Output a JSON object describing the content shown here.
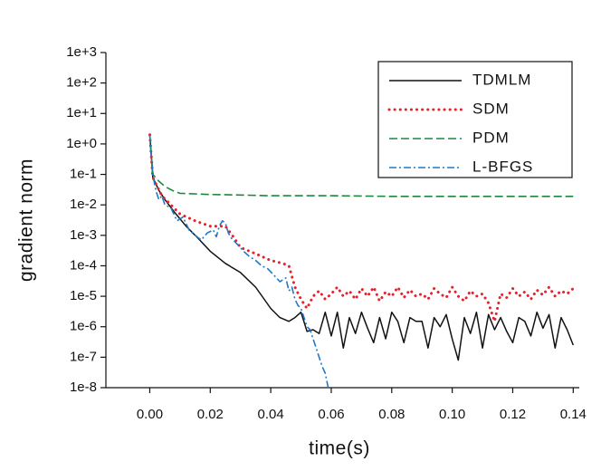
{
  "chart_data": {
    "type": "line",
    "x_label": "time(s)",
    "y_label": "gradient norm",
    "log_y": true,
    "legend_position": "upper right",
    "xlim": [
      -0.0145,
      0.142
    ],
    "ylim": [
      1e-08,
      1000
    ],
    "xticks": [
      {
        "value": 0,
        "label": "0.00"
      },
      0.02,
      0.04,
      0.06,
      0.08,
      {
        "value": 0.1,
        "label": "0.10"
      },
      0.12,
      0.14
    ],
    "yticks": [
      {
        "value": 1e-08,
        "label": "1e-8"
      },
      {
        "value": 1e-07,
        "label": "1e-7"
      },
      {
        "value": 1e-06,
        "label": "1e-6"
      },
      {
        "value": 1e-05,
        "label": "1e-5"
      },
      {
        "value": 0.0001,
        "label": "1e-4"
      },
      {
        "value": 0.001,
        "label": "1e-3"
      },
      {
        "value": 0.01,
        "label": "1e-2"
      },
      {
        "value": 0.1,
        "label": "1e-1"
      },
      {
        "value": 1,
        "label": "1e+0"
      },
      {
        "value": 10,
        "label": "1e+1"
      },
      {
        "value": 100,
        "label": "1e+2"
      },
      {
        "value": 1000,
        "label": "1e+3"
      }
    ],
    "series": [
      {
        "name": "TDMLM",
        "color": "#111111",
        "style": "solid",
        "x": [
          0,
          0.001,
          0.003,
          0.005,
          0.008,
          0.012,
          0.016,
          0.02,
          0.025,
          0.03,
          0.035,
          0.04,
          0.043,
          0.046,
          0.048,
          0.05,
          0.052,
          0.054,
          0.056,
          0.058,
          0.06,
          0.062,
          0.064,
          0.066,
          0.068,
          0.07,
          0.072,
          0.074,
          0.076,
          0.078,
          0.08,
          0.082,
          0.084,
          0.086,
          0.088,
          0.09,
          0.092,
          0.094,
          0.096,
          0.098,
          0.1,
          0.102,
          0.104,
          0.106,
          0.108,
          0.11,
          0.112,
          0.114,
          0.116,
          0.118,
          0.12,
          0.122,
          0.124,
          0.126,
          0.128,
          0.13,
          0.132,
          0.134,
          0.136,
          0.138,
          0.14
        ],
        "values": [
          2,
          0.08,
          0.03,
          0.015,
          0.006,
          0.002,
          0.0008,
          0.0003,
          0.00012,
          6e-05,
          2e-05,
          4e-06,
          2e-06,
          1.5e-06,
          2e-06,
          3e-06,
          7e-07,
          8e-07,
          6e-07,
          3e-06,
          5e-07,
          3e-06,
          2e-07,
          2e-06,
          6e-07,
          3e-06,
          9e-07,
          3e-07,
          2e-06,
          4e-07,
          3e-06,
          1.5e-06,
          3e-07,
          2e-06,
          1.5e-06,
          1.5e-06,
          2e-07,
          2e-06,
          1e-06,
          2.5e-06,
          4e-07,
          8e-08,
          2e-06,
          6e-07,
          3e-06,
          2e-07,
          2.5e-06,
          8e-07,
          2e-06,
          7e-07,
          3e-07,
          2e-06,
          1.5e-06,
          5e-07,
          3e-06,
          9e-07,
          2.5e-06,
          2e-07,
          2e-06,
          8e-07,
          2.5e-07
        ]
      },
      {
        "name": "SDM",
        "color": "#e8202a",
        "style": "dotted",
        "x": [
          0,
          0.001,
          0.004,
          0.007,
          0.01,
          0.015,
          0.02,
          0.025,
          0.028,
          0.03,
          0.035,
          0.04,
          0.044,
          0.046,
          0.048,
          0.05,
          0.052,
          0.054,
          0.056,
          0.058,
          0.06,
          0.062,
          0.064,
          0.066,
          0.068,
          0.07,
          0.072,
          0.074,
          0.076,
          0.078,
          0.08,
          0.082,
          0.084,
          0.086,
          0.088,
          0.09,
          0.092,
          0.094,
          0.096,
          0.098,
          0.1,
          0.102,
          0.104,
          0.106,
          0.108,
          0.11,
          0.112,
          0.114,
          0.116,
          0.118,
          0.12,
          0.122,
          0.124,
          0.126,
          0.128,
          0.13,
          0.132,
          0.134,
          0.136,
          0.138,
          0.14
        ],
        "values": [
          2,
          0.08,
          0.02,
          0.01,
          0.005,
          0.003,
          0.002,
          0.002,
          0.0008,
          0.0004,
          0.00025,
          0.00015,
          0.00012,
          0.0001,
          2e-05,
          8e-06,
          4e-06,
          1e-05,
          1.5e-05,
          8e-06,
          1.2e-05,
          2e-05,
          1e-05,
          1.5e-05,
          8e-06,
          1.8e-05,
          1e-05,
          2e-05,
          7e-06,
          1.4e-05,
          1e-05,
          2e-05,
          9e-06,
          1.6e-05,
          1e-05,
          1.2e-05,
          8e-06,
          1.8e-05,
          1.2e-05,
          9e-06,
          2e-05,
          1e-05,
          7e-06,
          1.5e-05,
          1e-05,
          1.2e-05,
          6e-06,
          1.5e-06,
          1.2e-05,
          9e-06,
          1.8e-05,
          1e-05,
          1.4e-05,
          8e-06,
          1.6e-05,
          1.1e-05,
          2e-05,
          1e-05,
          1.5e-05,
          1.2e-05,
          1.8e-05
        ]
      },
      {
        "name": "PDM",
        "color": "#1a8a3a",
        "style": "dashed",
        "x": [
          0,
          0.001,
          0.003,
          0.005,
          0.008,
          0.01,
          0.02,
          0.03,
          0.04,
          0.05,
          0.06,
          0.08,
          0.1,
          0.12,
          0.14
        ],
        "values": [
          2,
          0.1,
          0.06,
          0.04,
          0.028,
          0.024,
          0.022,
          0.021,
          0.02,
          0.02,
          0.02,
          0.019,
          0.019,
          0.019,
          0.019
        ]
      },
      {
        "name": "L-BFGS",
        "color": "#1f78c8",
        "style": "dashdot",
        "x": [
          0,
          0.001,
          0.002,
          0.003,
          0.004,
          0.005,
          0.007,
          0.009,
          0.011,
          0.013,
          0.015,
          0.017,
          0.019,
          0.021,
          0.022,
          0.023,
          0.024,
          0.025,
          0.026,
          0.027,
          0.029,
          0.031,
          0.033,
          0.035,
          0.037,
          0.039,
          0.041,
          0.043,
          0.045,
          0.046,
          0.047,
          0.048,
          0.049,
          0.05,
          0.051,
          0.052,
          0.053,
          0.054,
          0.055,
          0.056,
          0.057,
          0.058,
          0.059
        ],
        "values": [
          2,
          0.1,
          0.03,
          0.015,
          0.02,
          0.01,
          0.008,
          0.003,
          0.004,
          0.0015,
          0.001,
          0.0007,
          0.0012,
          0.0015,
          0.0009,
          0.002,
          0.003,
          0.0025,
          0.0012,
          0.0008,
          0.0005,
          0.0003,
          0.0002,
          0.00015,
          0.0001,
          8e-05,
          5e-05,
          3e-05,
          4e-05,
          1.5e-05,
          2e-05,
          8e-06,
          5e-06,
          4e-06,
          2e-06,
          1e-06,
          8e-07,
          4e-07,
          2e-07,
          1e-07,
          5e-08,
          3e-08,
          1e-08
        ]
      }
    ]
  }
}
